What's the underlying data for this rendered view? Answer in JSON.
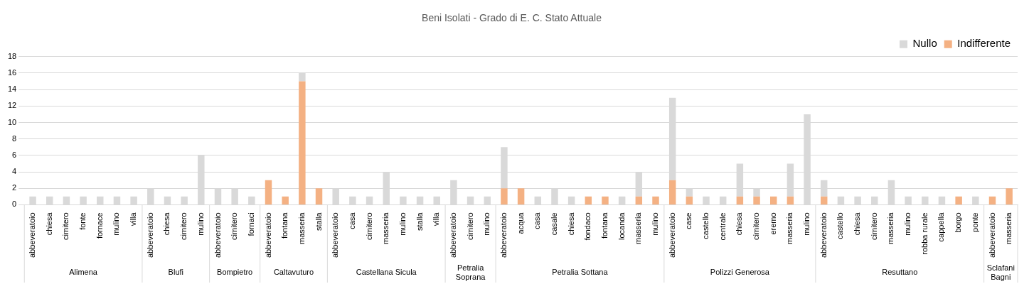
{
  "chart_data": {
    "type": "bar",
    "title": "Beni Isolati - Grado di E. C. Stato Attuale",
    "stacked": true,
    "grid": "y",
    "legend": "top right",
    "categories": [
      "abbeveratoio",
      "chiesa",
      "cimitero",
      "fonte",
      "fornace",
      "mulino",
      "villa",
      "abbeveratoio",
      "chiesa",
      "cimitero",
      "mulino",
      "abbeveratoio",
      "cimitero",
      "fornaci",
      "abbeveratoio",
      "fontana",
      "masseria",
      "stalla",
      "abbeveratoio",
      "casa",
      "cimitero",
      "masseria",
      "mulino",
      "stalla",
      "villa",
      "abbeveratoio",
      "cimitero",
      "mulino",
      "abbeveratoio",
      "acqua",
      "casa",
      "casale",
      "chiesa",
      "fondaco",
      "fontana",
      "locanda",
      "masseria",
      "mulino",
      "abbeveratoio",
      "case",
      "castello",
      "centrale",
      "chiesa",
      "cimitero",
      "eremo",
      "masseria",
      "mulino",
      "abbeveratoio",
      "castello",
      "chiesa",
      "cimitero",
      "masseria",
      "mulino",
      "robba rurale",
      "cappella",
      "borgo",
      "ponte",
      "abbeveratoio",
      "masseria"
    ],
    "annotations": [
      "Alimena",
      "Blufi",
      "Bompietro",
      "Caltavuturo",
      "Castellana Sicula",
      "Petralia Soprana",
      "Petralia Sottana",
      "Polizzi Generosa",
      "Resuttano",
      "Sclafani Bagni"
    ],
    "series": [
      {
        "name": "Indifferente",
        "color": "#f4b183",
        "values": [
          0,
          0,
          0,
          0,
          0,
          0,
          0,
          0,
          0,
          0,
          0,
          0,
          0,
          0,
          3,
          1,
          15,
          2,
          0,
          0,
          0,
          0,
          0,
          0,
          0,
          0,
          0,
          0,
          2,
          2,
          0,
          0,
          0,
          1,
          1,
          0,
          1,
          1,
          3,
          1,
          0,
          0,
          1,
          1,
          1,
          1,
          0,
          1,
          0,
          0,
          0,
          0,
          0,
          0,
          0,
          1,
          0,
          1,
          2
        ]
      },
      {
        "name": "Nullo",
        "color": "#d9d9d9",
        "values": [
          1,
          1,
          1,
          1,
          1,
          1,
          1,
          2,
          1,
          1,
          6,
          2,
          2,
          1,
          0,
          0,
          1,
          0,
          2,
          1,
          1,
          4,
          1,
          1,
          1,
          3,
          1,
          1,
          5,
          0,
          1,
          2,
          1,
          0,
          0,
          1,
          3,
          0,
          10,
          1,
          1,
          1,
          4,
          1,
          0,
          4,
          11,
          2,
          1,
          1,
          1,
          3,
          1,
          1,
          1,
          0,
          1,
          0,
          0
        ]
      }
    ],
    "ylim": [
      0,
      18
    ],
    "yticks": [
      0,
      2,
      4,
      6,
      8,
      10,
      12,
      14,
      16,
      18
    ]
  }
}
